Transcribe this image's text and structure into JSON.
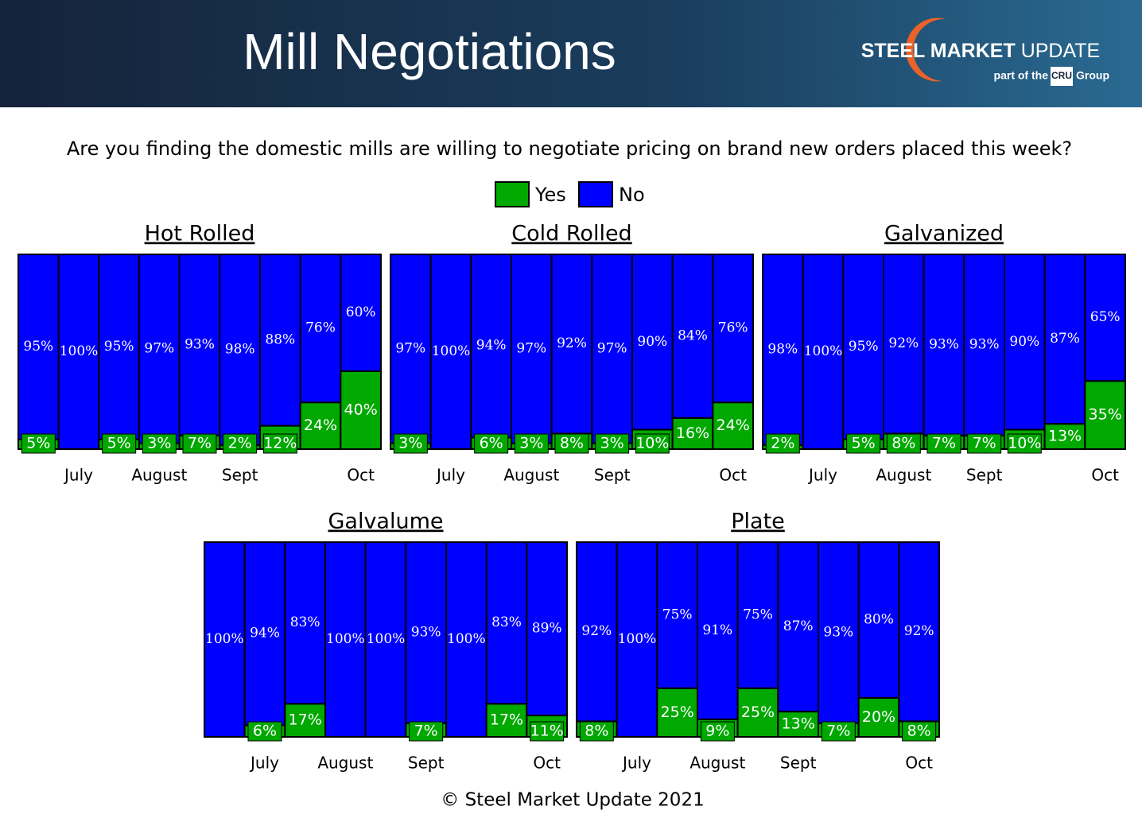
{
  "header": {
    "title": "Mill Negotiations",
    "logo_bold": "STEEL MARKET",
    "logo_light": "UPDATE",
    "logo_part": "part of the",
    "logo_cru": "CRU",
    "logo_group": "Group"
  },
  "question": "Are you finding the domestic mills are willing to negotiate pricing on brand new orders placed this week?",
  "legend": [
    {
      "name": "Yes",
      "color": "#00a800"
    },
    {
      "name": "No",
      "color": "#0000ff"
    }
  ],
  "footer": "© Steel Market Update 2021",
  "chart_data": [
    {
      "type": "bar",
      "stacked": true,
      "title": "Hot Rolled",
      "categories": [
        null,
        "July",
        null,
        "August",
        null,
        "Sept",
        null,
        null,
        "Oct"
      ],
      "ylim": [
        0,
        100
      ],
      "series": [
        {
          "values": [
            5,
            0,
            5,
            3,
            7,
            2,
            12,
            24,
            40
          ],
          "value_labels": [
            "5%",
            null,
            "5%",
            "3%",
            "7%",
            "2%",
            "12%",
            "24%",
            "40%"
          ]
        },
        {
          "values": [
            95,
            100,
            95,
            97,
            93,
            98,
            88,
            76,
            60
          ],
          "value_labels": [
            "95%",
            "100%",
            "95%",
            "97%",
            "93%",
            "98%",
            "88%",
            "76%",
            "60%"
          ]
        }
      ]
    },
    {
      "type": "bar",
      "stacked": true,
      "title": "Cold Rolled",
      "categories": [
        null,
        "July",
        null,
        "August",
        null,
        "Sept",
        null,
        null,
        "Oct"
      ],
      "ylim": [
        0,
        100
      ],
      "series": [
        {
          "values": [
            3,
            0,
            6,
            3,
            8,
            3,
            10,
            16,
            24
          ],
          "value_labels": [
            "3%",
            null,
            "6%",
            "3%",
            "8%",
            "3%",
            "10%",
            "16%",
            "24%"
          ]
        },
        {
          "values": [
            97,
            100,
            94,
            97,
            92,
            97,
            90,
            84,
            76
          ],
          "value_labels": [
            "97%",
            "100%",
            "94%",
            "97%",
            "92%",
            "97%",
            "90%",
            "84%",
            "76%"
          ]
        }
      ]
    },
    {
      "type": "bar",
      "stacked": true,
      "title": "Galvanized",
      "categories": [
        null,
        "July",
        null,
        "August",
        null,
        "Sept",
        null,
        null,
        "Oct"
      ],
      "ylim": [
        0,
        100
      ],
      "series": [
        {
          "values": [
            2,
            0,
            5,
            8,
            7,
            7,
            10,
            13,
            35
          ],
          "value_labels": [
            "2%",
            null,
            "5%",
            "8%",
            "7%",
            "7%",
            "10%",
            "13%",
            "35%"
          ]
        },
        {
          "values": [
            98,
            100,
            95,
            92,
            93,
            93,
            90,
            87,
            65
          ],
          "value_labels": [
            "98%",
            "100%",
            "95%",
            "92%",
            "93%",
            "93%",
            "90%",
            "87%",
            "65%"
          ]
        }
      ]
    },
    {
      "type": "bar",
      "stacked": true,
      "title": "Galvalume",
      "categories": [
        null,
        "July",
        null,
        "August",
        null,
        "Sept",
        null,
        null,
        "Oct"
      ],
      "ylim": [
        0,
        100
      ],
      "series": [
        {
          "values": [
            0,
            6,
            17,
            0,
            0,
            7,
            0,
            17,
            11
          ],
          "value_labels": [
            null,
            "6%",
            "17%",
            null,
            null,
            "7%",
            null,
            "17%",
            "11%"
          ]
        },
        {
          "values": [
            100,
            94,
            83,
            100,
            100,
            93,
            100,
            83,
            89
          ],
          "value_labels": [
            "100%",
            "94%",
            "83%",
            "100%",
            "100%",
            "93%",
            "100%",
            "83%",
            "89%"
          ]
        }
      ]
    },
    {
      "type": "bar",
      "stacked": true,
      "title": "Plate",
      "categories": [
        null,
        "July",
        null,
        "August",
        null,
        "Sept",
        null,
        null,
        "Oct"
      ],
      "ylim": [
        0,
        100
      ],
      "series": [
        {
          "values": [
            8,
            0,
            25,
            9,
            25,
            13,
            7,
            20,
            8
          ],
          "value_labels": [
            "8%",
            null,
            "25%",
            "9%",
            "25%",
            "13%",
            "7%",
            "20%",
            "8%"
          ]
        },
        {
          "values": [
            92,
            100,
            75,
            91,
            75,
            87,
            93,
            80,
            92
          ],
          "value_labels": [
            "92%",
            "100%",
            "75%",
            "91%",
            "75%",
            "87%",
            "93%",
            "80%",
            "92%"
          ]
        }
      ]
    }
  ]
}
